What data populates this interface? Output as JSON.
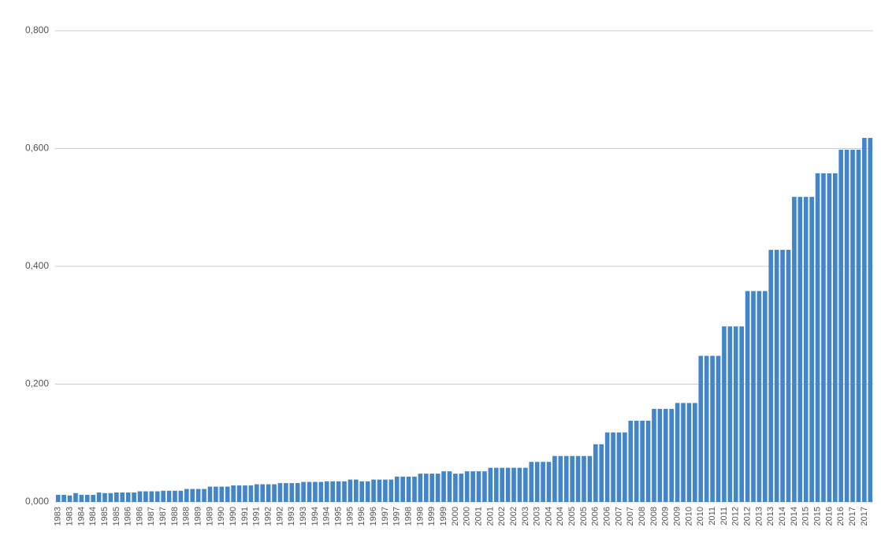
{
  "chart_data": {
    "type": "bar",
    "categories": [
      "1983",
      null,
      "1983",
      null,
      "1984",
      null,
      "1984",
      null,
      "1985",
      null,
      "1985",
      null,
      "1986",
      null,
      "1986",
      null,
      "1987",
      null,
      "1987",
      null,
      "1988",
      null,
      "1988",
      null,
      "1989",
      null,
      "1989",
      null,
      "1990",
      null,
      "1990",
      null,
      "1991",
      null,
      "1991",
      null,
      "1992",
      null,
      "1992",
      null,
      "1993",
      null,
      "1993",
      null,
      "1994",
      null,
      "1994",
      null,
      "1995",
      null,
      "1995",
      null,
      "1996",
      null,
      "1996",
      null,
      "1997",
      null,
      "1997",
      null,
      "1998",
      null,
      "1998",
      null,
      "1999",
      null,
      "1999",
      null,
      "2000",
      null,
      "2000",
      null,
      "2001",
      null,
      "2001",
      null,
      "2002",
      null,
      "2002",
      null,
      "2003",
      null,
      "2003",
      null,
      "2004",
      null,
      "2004",
      null,
      "2005",
      null,
      "2005",
      null,
      "2006",
      null,
      "2006",
      null,
      "2007",
      null,
      "2007",
      null,
      "2008",
      null,
      "2008",
      null,
      "2009",
      null,
      "2009",
      null,
      "2010",
      null,
      "2010",
      null,
      "2011",
      null,
      "2011",
      null,
      "2012",
      null,
      "2012",
      null,
      "2013",
      null,
      "2013",
      null,
      "2014",
      null,
      "2014",
      null,
      "2015",
      null,
      "2015",
      null,
      "2016",
      null,
      "2016",
      null,
      "2017",
      null,
      "2017",
      null
    ],
    "values": [
      0.012,
      0.012,
      0.011,
      0.015,
      0.012,
      0.012,
      0.012,
      0.016,
      0.015,
      0.015,
      0.016,
      0.016,
      0.016,
      0.016,
      0.018,
      0.018,
      0.018,
      0.018,
      0.019,
      0.019,
      0.019,
      0.019,
      0.022,
      0.022,
      0.022,
      0.022,
      0.026,
      0.026,
      0.026,
      0.026,
      0.028,
      0.028,
      0.028,
      0.028,
      0.03,
      0.03,
      0.03,
      0.03,
      0.032,
      0.032,
      0.032,
      0.032,
      0.034,
      0.034,
      0.034,
      0.034,
      0.035,
      0.035,
      0.035,
      0.035,
      0.038,
      0.038,
      0.035,
      0.035,
      0.038,
      0.038,
      0.038,
      0.038,
      0.043,
      0.043,
      0.043,
      0.043,
      0.048,
      0.048,
      0.048,
      0.048,
      0.052,
      0.052,
      0.048,
      0.048,
      0.052,
      0.052,
      0.052,
      0.052,
      0.058,
      0.058,
      0.058,
      0.058,
      0.058,
      0.058,
      0.058,
      0.068,
      0.068,
      0.068,
      0.068,
      0.078,
      0.078,
      0.078,
      0.078,
      0.078,
      0.078,
      0.078,
      0.098,
      0.098,
      0.118,
      0.118,
      0.118,
      0.118,
      0.138,
      0.138,
      0.138,
      0.138,
      0.158,
      0.158,
      0.158,
      0.158,
      0.168,
      0.168,
      0.168,
      0.168,
      0.248,
      0.248,
      0.248,
      0.248,
      0.298,
      0.298,
      0.298,
      0.298,
      0.358,
      0.358,
      0.358,
      0.358,
      0.428,
      0.428,
      0.428,
      0.428,
      0.518,
      0.518,
      0.518,
      0.518,
      0.558,
      0.558,
      0.558,
      0.558,
      0.598,
      0.598,
      0.598,
      0.598,
      0.618,
      0.618
    ],
    "color": "#4285c8",
    "ylim": [
      0,
      0.8
    ],
    "yticks": [
      {
        "value": 0,
        "label": "0,000"
      },
      {
        "value": 0.2,
        "label": "0,200"
      },
      {
        "value": 0.4,
        "label": "0,400"
      },
      {
        "value": 0.6,
        "label": "0,600"
      },
      {
        "value": 0.8,
        "label": "0,800"
      }
    ],
    "grid": true
  }
}
